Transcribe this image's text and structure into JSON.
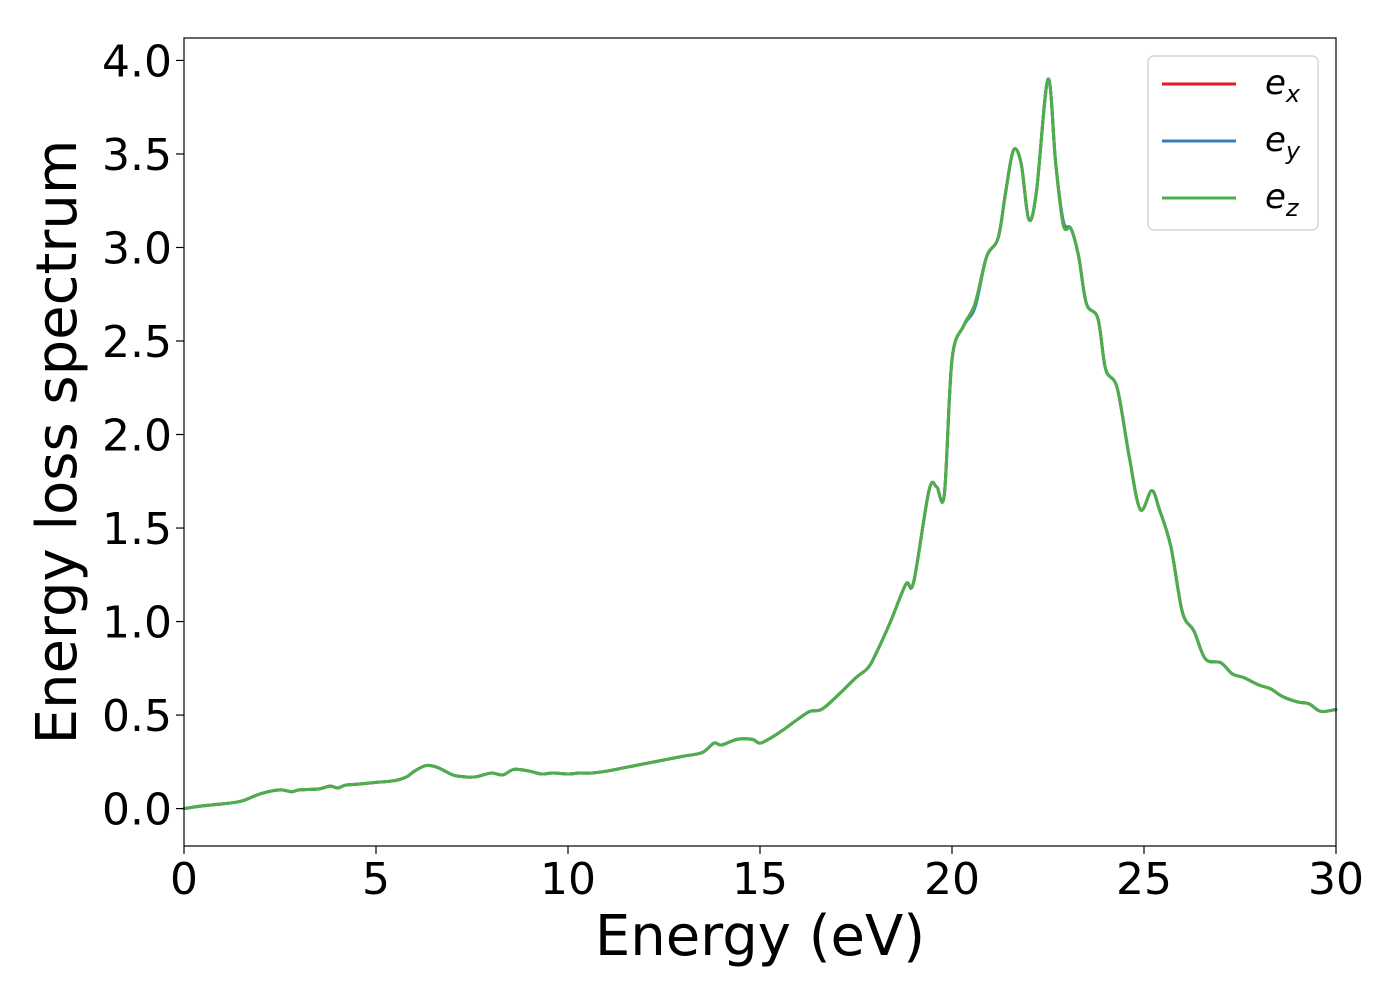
{
  "chart_data": {
    "type": "line",
    "title": "",
    "xlabel": "Energy (eV)",
    "ylabel": "Energy loss spectrum",
    "xlim": [
      0,
      30
    ],
    "ylim": [
      -0.2,
      4.12
    ],
    "xticks": [
      0,
      5,
      10,
      15,
      20,
      25,
      30
    ],
    "xtick_labels": [
      "0",
      "5",
      "10",
      "15",
      "20",
      "25",
      "30"
    ],
    "yticks": [
      0.0,
      0.5,
      1.0,
      1.5,
      2.0,
      2.5,
      3.0,
      3.5,
      4.0
    ],
    "ytick_labels": [
      "0.0",
      "0.5",
      "1.0",
      "1.5",
      "2.0",
      "2.5",
      "3.0",
      "3.5",
      "4.0"
    ],
    "grid": false,
    "legend_position": "top-right",
    "series": [
      {
        "name": "e_x",
        "legend_base": "e",
        "legend_sub": "x",
        "color": "#e41a1c",
        "x": [
          0,
          0.5,
          1,
          1.5,
          2,
          2.5,
          2.8,
          3,
          3.5,
          3.8,
          4,
          4.2,
          4.5,
          5,
          5.5,
          5.8,
          6,
          6.3,
          6.6,
          7,
          7.3,
          7.6,
          8,
          8.3,
          8.6,
          9,
          9.3,
          9.6,
          10,
          10.3,
          10.6,
          11,
          11.5,
          12,
          12.5,
          13,
          13.5,
          13.8,
          14,
          14.4,
          14.8,
          15,
          15.3,
          15.6,
          16,
          16.3,
          16.6,
          17,
          17.5,
          17.8,
          18,
          18.4,
          18.8,
          19,
          19.4,
          19.6,
          19.8,
          20,
          20.3,
          20.6,
          20.9,
          21.2,
          21.4,
          21.6,
          21.8,
          22,
          22.2,
          22.5,
          22.7,
          22.9,
          23.1,
          23.3,
          23.5,
          23.8,
          24,
          24.3,
          24.6,
          24.9,
          25.2,
          25.4,
          25.7,
          26,
          26.3,
          26.6,
          27,
          27.3,
          27.6,
          28,
          28.3,
          28.6,
          29,
          29.3,
          29.6,
          30
        ],
        "y": [
          0.0,
          0.015,
          0.025,
          0.04,
          0.08,
          0.1,
          0.09,
          0.1,
          0.105,
          0.12,
          0.11,
          0.125,
          0.13,
          0.14,
          0.15,
          0.17,
          0.2,
          0.23,
          0.22,
          0.18,
          0.17,
          0.17,
          0.19,
          0.18,
          0.21,
          0.2,
          0.185,
          0.19,
          0.185,
          0.19,
          0.19,
          0.2,
          0.22,
          0.24,
          0.26,
          0.28,
          0.3,
          0.35,
          0.34,
          0.37,
          0.37,
          0.35,
          0.38,
          0.42,
          0.48,
          0.52,
          0.53,
          0.6,
          0.7,
          0.75,
          0.82,
          1.0,
          1.2,
          1.21,
          1.7,
          1.72,
          1.68,
          2.4,
          2.58,
          2.7,
          2.95,
          3.05,
          3.3,
          3.52,
          3.45,
          3.15,
          3.3,
          3.9,
          3.45,
          3.12,
          3.1,
          2.95,
          2.7,
          2.62,
          2.35,
          2.25,
          1.9,
          1.6,
          1.7,
          1.6,
          1.4,
          1.05,
          0.95,
          0.8,
          0.78,
          0.72,
          0.7,
          0.66,
          0.64,
          0.6,
          0.57,
          0.56,
          0.52,
          0.53
        ]
      },
      {
        "name": "e_y",
        "legend_base": "e",
        "legend_sub": "y",
        "color": "#377eb8",
        "x": [
          0,
          0.5,
          1,
          1.5,
          2,
          2.5,
          2.8,
          3,
          3.5,
          3.8,
          4,
          4.2,
          4.5,
          5,
          5.5,
          5.8,
          6,
          6.3,
          6.6,
          7,
          7.3,
          7.6,
          8,
          8.3,
          8.6,
          9,
          9.3,
          9.6,
          10,
          10.3,
          10.6,
          11,
          11.5,
          12,
          12.5,
          13,
          13.5,
          13.8,
          14,
          14.4,
          14.8,
          15,
          15.3,
          15.6,
          16,
          16.3,
          16.6,
          17,
          17.5,
          17.8,
          18,
          18.4,
          18.8,
          19,
          19.4,
          19.6,
          19.8,
          20,
          20.3,
          20.6,
          20.9,
          21.2,
          21.4,
          21.6,
          21.8,
          22,
          22.2,
          22.5,
          22.7,
          22.9,
          23.1,
          23.3,
          23.5,
          23.8,
          24,
          24.3,
          24.6,
          24.9,
          25.2,
          25.4,
          25.7,
          26,
          26.3,
          26.6,
          27,
          27.3,
          27.6,
          28,
          28.3,
          28.6,
          29,
          29.3,
          29.6,
          30
        ],
        "y": [
          0.0,
          0.015,
          0.025,
          0.04,
          0.08,
          0.1,
          0.09,
          0.1,
          0.105,
          0.12,
          0.11,
          0.125,
          0.13,
          0.14,
          0.15,
          0.17,
          0.2,
          0.23,
          0.22,
          0.18,
          0.17,
          0.17,
          0.19,
          0.18,
          0.21,
          0.2,
          0.185,
          0.19,
          0.185,
          0.19,
          0.19,
          0.2,
          0.22,
          0.24,
          0.26,
          0.28,
          0.3,
          0.35,
          0.34,
          0.37,
          0.37,
          0.35,
          0.38,
          0.42,
          0.48,
          0.52,
          0.53,
          0.6,
          0.7,
          0.75,
          0.82,
          1.0,
          1.2,
          1.21,
          1.7,
          1.72,
          1.68,
          2.4,
          2.58,
          2.68,
          2.95,
          3.05,
          3.3,
          3.52,
          3.45,
          3.15,
          3.3,
          3.9,
          3.45,
          3.14,
          3.1,
          2.95,
          2.7,
          2.62,
          2.35,
          2.25,
          1.9,
          1.6,
          1.7,
          1.6,
          1.4,
          1.05,
          0.95,
          0.8,
          0.78,
          0.72,
          0.7,
          0.66,
          0.64,
          0.6,
          0.57,
          0.56,
          0.52,
          0.53
        ]
      },
      {
        "name": "e_z",
        "legend_base": "e",
        "legend_sub": "z",
        "color": "#4daf4a",
        "x": [
          0,
          0.5,
          1,
          1.5,
          2,
          2.5,
          2.8,
          3,
          3.5,
          3.8,
          4,
          4.2,
          4.5,
          5,
          5.5,
          5.8,
          6,
          6.3,
          6.6,
          7,
          7.3,
          7.6,
          8,
          8.3,
          8.6,
          9,
          9.3,
          9.6,
          10,
          10.3,
          10.6,
          11,
          11.5,
          12,
          12.5,
          13,
          13.5,
          13.8,
          14,
          14.4,
          14.8,
          15,
          15.3,
          15.6,
          16,
          16.3,
          16.6,
          17,
          17.5,
          17.8,
          18,
          18.4,
          18.8,
          19,
          19.4,
          19.6,
          19.8,
          20,
          20.3,
          20.6,
          20.9,
          21.2,
          21.4,
          21.6,
          21.8,
          22,
          22.2,
          22.5,
          22.7,
          22.9,
          23.1,
          23.3,
          23.5,
          23.8,
          24,
          24.3,
          24.6,
          24.9,
          25.2,
          25.4,
          25.7,
          26,
          26.3,
          26.6,
          27,
          27.3,
          27.6,
          28,
          28.3,
          28.6,
          29,
          29.3,
          29.6,
          30
        ],
        "y": [
          0.0,
          0.015,
          0.025,
          0.04,
          0.08,
          0.1,
          0.09,
          0.1,
          0.105,
          0.12,
          0.11,
          0.125,
          0.13,
          0.14,
          0.15,
          0.17,
          0.2,
          0.23,
          0.22,
          0.18,
          0.17,
          0.17,
          0.19,
          0.18,
          0.21,
          0.2,
          0.185,
          0.19,
          0.185,
          0.19,
          0.19,
          0.2,
          0.22,
          0.24,
          0.26,
          0.28,
          0.3,
          0.35,
          0.34,
          0.37,
          0.37,
          0.35,
          0.38,
          0.42,
          0.48,
          0.52,
          0.53,
          0.6,
          0.7,
          0.75,
          0.82,
          1.0,
          1.2,
          1.21,
          1.7,
          1.72,
          1.68,
          2.4,
          2.58,
          2.7,
          2.95,
          3.05,
          3.3,
          3.52,
          3.45,
          3.15,
          3.3,
          3.9,
          3.45,
          3.12,
          3.1,
          2.95,
          2.7,
          2.62,
          2.35,
          2.25,
          1.9,
          1.6,
          1.7,
          1.6,
          1.4,
          1.05,
          0.95,
          0.8,
          0.78,
          0.72,
          0.7,
          0.66,
          0.64,
          0.6,
          0.57,
          0.56,
          0.52,
          0.53
        ]
      }
    ]
  }
}
